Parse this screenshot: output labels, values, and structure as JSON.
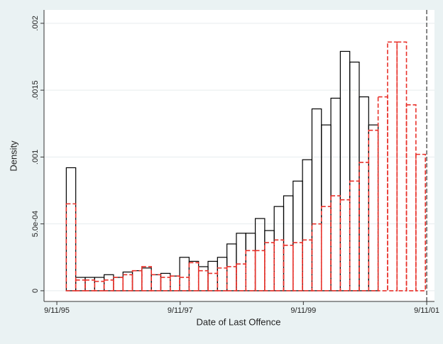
{
  "chart_data": {
    "type": "histogram",
    "xlabel": "Date of Last Offence",
    "ylabel": "Density",
    "xlim": [
      12961,
      15275
    ],
    "ylim": [
      -8e-05,
      0.0021
    ],
    "xticks": [
      {
        "value": 13037,
        "label": "9/11/95"
      },
      {
        "value": 13768,
        "label": "9/11/97"
      },
      {
        "value": 14498,
        "label": "9/11/99"
      },
      {
        "value": 15229,
        "label": "9/11/01"
      }
    ],
    "yticks": [
      0,
      {
        "value": 0.0005,
        "label": "5.0e-04"
      },
      {
        "value": 0.001,
        "label": ".001"
      },
      {
        "value": 0.0015,
        "label": ".0015"
      },
      {
        "value": 0.002,
        "label": ".002"
      }
    ],
    "grid": true,
    "xline": 15229,
    "series": [
      {
        "color": "#000000",
        "dashed": false,
        "bins": [
          13093,
          13149,
          13205,
          13261,
          13317,
          13373,
          13429,
          13485,
          13541,
          13597,
          13653,
          13709,
          13765,
          13821,
          13877,
          13933,
          13989,
          14045,
          14101,
          14157,
          14213,
          14269,
          14325,
          14381,
          14437,
          14493,
          14549,
          14605,
          14661,
          14717,
          14773,
          14829,
          14885,
          14941
        ],
        "values": [
          0.00092,
          0.0001,
          0.0001,
          0.0001,
          0.00012,
          0.0001,
          0.00014,
          0.00015,
          0.00017,
          0.00012,
          0.00013,
          0.00011,
          0.00025,
          0.00022,
          0.00018,
          0.00022,
          0.00025,
          0.00035,
          0.00043,
          0.00043,
          0.00054,
          0.00045,
          0.00063,
          0.00071,
          0.00082,
          0.00098,
          0.00136,
          0.00124,
          0.00144,
          0.00179,
          0.00171,
          0.00145,
          0.00124
        ]
      },
      {
        "color": "#e8312a",
        "dashed": true,
        "bins": [
          13093,
          13149,
          13205,
          13261,
          13317,
          13373,
          13429,
          13485,
          13541,
          13597,
          13653,
          13709,
          13765,
          13821,
          13877,
          13933,
          13989,
          14045,
          14101,
          14157,
          14213,
          14269,
          14325,
          14381,
          14437,
          14493,
          14549,
          14605,
          14661,
          14717,
          14773,
          14829,
          14885,
          14941,
          14997,
          15053,
          15109,
          15165,
          15221
        ],
        "values": [
          0.00065,
          8e-05,
          8e-05,
          7e-05,
          8e-05,
          0.0001,
          0.00012,
          0.00015,
          0.00018,
          0.00012,
          0.0001,
          0.00011,
          0.0001,
          0.00021,
          0.00015,
          0.00013,
          0.00017,
          0.00018,
          0.0002,
          0.0003,
          0.0003,
          0.00036,
          0.00038,
          0.00034,
          0.00036,
          0.00038,
          0.0005,
          0.00063,
          0.00071,
          0.00068,
          0.00082,
          0.00096,
          0.0012,
          0.00145,
          0.00186,
          0.00186,
          0.00139,
          0.00102
        ]
      }
    ]
  }
}
